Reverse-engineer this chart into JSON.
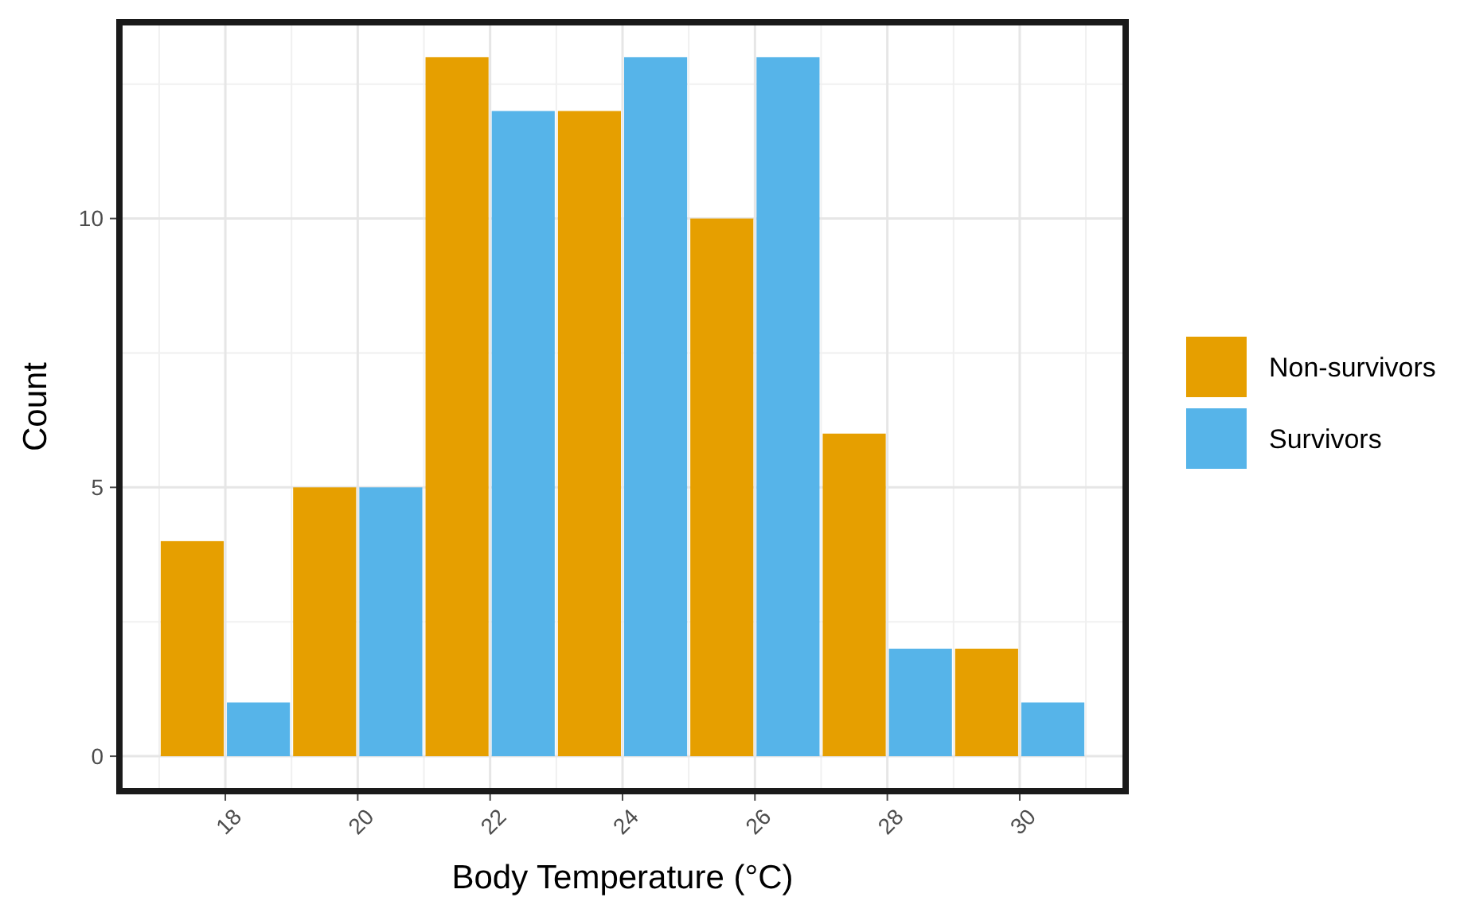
{
  "chart_data": {
    "type": "bar",
    "xlabel": "Body Temperature (°C)",
    "ylabel": "Count",
    "categories": [
      "18",
      "20",
      "22",
      "24",
      "26",
      "28",
      "30"
    ],
    "series": [
      {
        "name": "Non-survivors",
        "color": "#e69f00",
        "values": [
          4,
          5,
          13,
          12,
          10,
          6,
          2
        ]
      },
      {
        "name": "Survivors",
        "color": "#56b4e9",
        "values": [
          1,
          5,
          12,
          13,
          13,
          2,
          1
        ]
      }
    ],
    "ylim": [
      -0.65,
      13.65
    ],
    "yticks": [
      0,
      5,
      10
    ],
    "grid": true,
    "legend": "right"
  }
}
